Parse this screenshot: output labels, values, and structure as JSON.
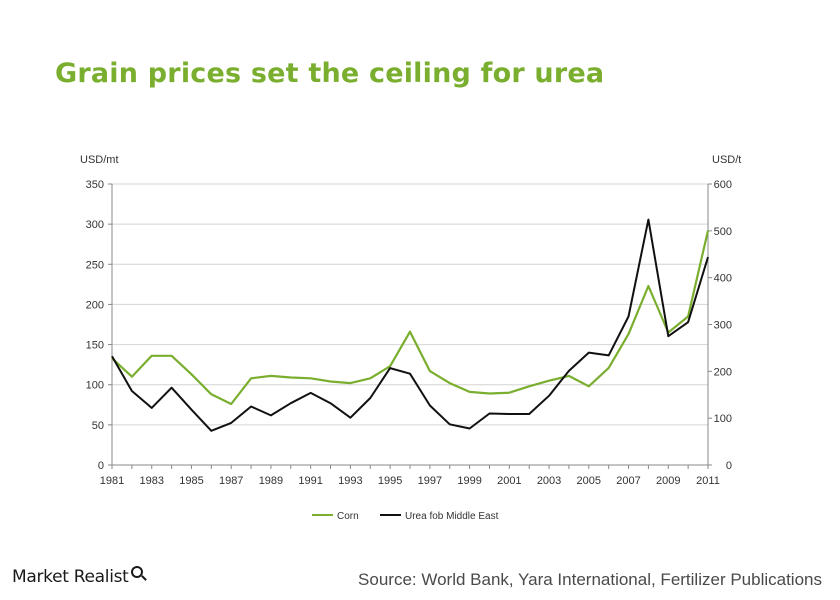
{
  "header": {
    "title": "Grain prices set the ceiling for urea"
  },
  "footer": {
    "brand": "Market Realist",
    "source": "Source: World Bank, Yara International, Fertilizer Publications"
  },
  "colors": {
    "title": "#7AAE2E",
    "corn": "#7AAE2E",
    "urea": "#111111",
    "grid": "#d4d4d4"
  },
  "chart_data": {
    "type": "line",
    "title": "",
    "grid": true,
    "legend_position": "bottom",
    "x": [
      1981,
      1982,
      1983,
      1984,
      1985,
      1986,
      1987,
      1988,
      1989,
      1990,
      1991,
      1992,
      1993,
      1994,
      1995,
      1996,
      1997,
      1998,
      1999,
      2000,
      2001,
      2002,
      2003,
      2004,
      2005,
      2006,
      2007,
      2008,
      2009,
      2010,
      2011
    ],
    "x_ticks": [
      "1981",
      "1983",
      "1985",
      "1987",
      "1989",
      "1991",
      "1993",
      "1995",
      "1997",
      "1999",
      "2001",
      "2003",
      "2005",
      "2007",
      "2009",
      "2011"
    ],
    "y_left": {
      "label": "USD/mt",
      "ylim": [
        0,
        350
      ],
      "ticks": [
        "0",
        "50",
        "100",
        "150",
        "200",
        "250",
        "300",
        "350"
      ]
    },
    "y_right": {
      "label": "USD/t",
      "ylim": [
        0,
        600
      ],
      "ticks": [
        "0",
        "100",
        "200",
        "300",
        "400",
        "500",
        "600"
      ]
    },
    "series": [
      {
        "name": "Corn",
        "axis": "left",
        "values": [
          133,
          110,
          136,
          136,
          113,
          88,
          76,
          108,
          111,
          109,
          108,
          104,
          102,
          108,
          123,
          166,
          117,
          102,
          91,
          89,
          90,
          98,
          105,
          111,
          98,
          121,
          163,
          223,
          165,
          185,
          292
        ]
      },
      {
        "name": "Urea fob Middle East",
        "axis": "right",
        "values": [
          232,
          158,
          122,
          165,
          118,
          73,
          90,
          125,
          106,
          132,
          154,
          132,
          101,
          143,
          207,
          195,
          127,
          87,
          78,
          110,
          109,
          109,
          148,
          201,
          240,
          234,
          317,
          524,
          275,
          305,
          444
        ]
      }
    ]
  }
}
